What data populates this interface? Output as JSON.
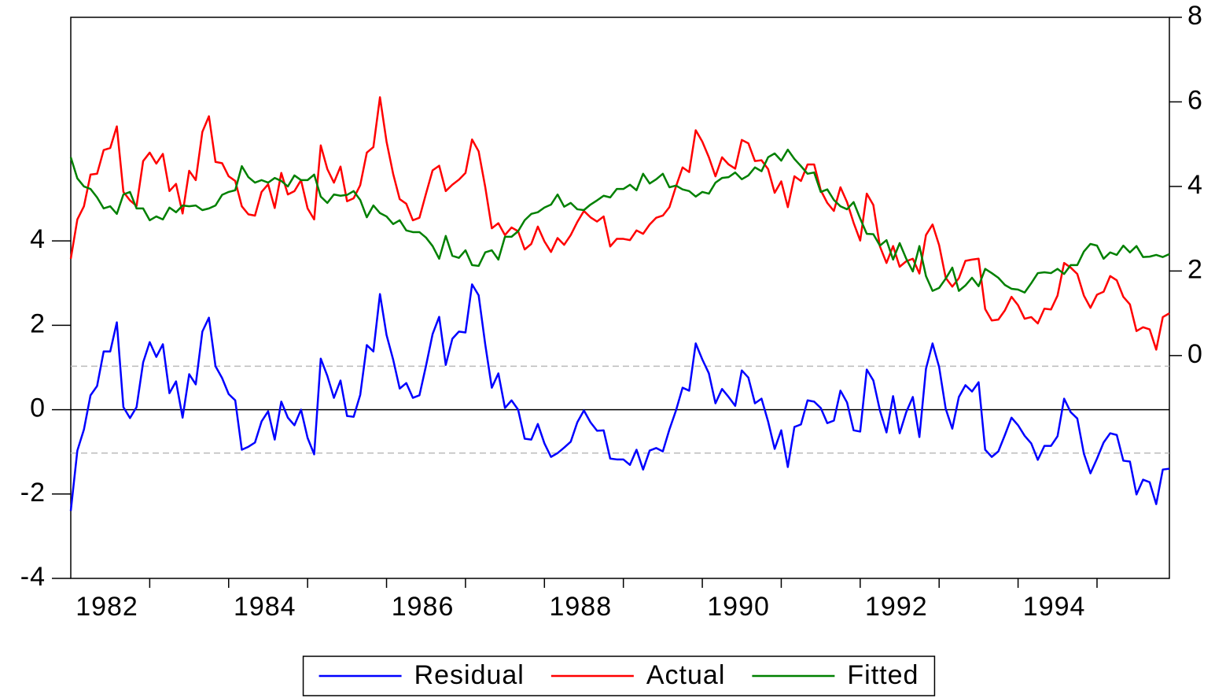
{
  "chart_data": {
    "type": "line",
    "categories": [
      null,
      null,
      null,
      null,
      null,
      null,
      "1982",
      null,
      null,
      null,
      null,
      null,
      null,
      null,
      null,
      null,
      null,
      null,
      null,
      null,
      null,
      null,
      null,
      null,
      null,
      null,
      null,
      null,
      null,
      null,
      "1984",
      null,
      null,
      null,
      null,
      null,
      null,
      null,
      null,
      null,
      null,
      null,
      null,
      null,
      null,
      null,
      null,
      null,
      null,
      null,
      null,
      null,
      null,
      null,
      "1986",
      null,
      null,
      null,
      null,
      null,
      null,
      null,
      null,
      null,
      null,
      null,
      null,
      null,
      null,
      null,
      null,
      null,
      null,
      null,
      null,
      null,
      null,
      null,
      "1988",
      null,
      null,
      null,
      null,
      null,
      null,
      null,
      null,
      null,
      null,
      null,
      null,
      null,
      null,
      null,
      null,
      null,
      null,
      null,
      null,
      null,
      null,
      null,
      "1990",
      null,
      null,
      null,
      null,
      null,
      null,
      null,
      null,
      null,
      null,
      null,
      null,
      null,
      null,
      null,
      null,
      null,
      null,
      null,
      null,
      null,
      null,
      null,
      "1992",
      null,
      null,
      null,
      null,
      null,
      null,
      null,
      null,
      null,
      null,
      null,
      null,
      null,
      null,
      null,
      null,
      null,
      null,
      null,
      null,
      null,
      null,
      null,
      "1994",
      null,
      null,
      null,
      null,
      null,
      null,
      null,
      null,
      null,
      null,
      null,
      null,
      null,
      null,
      null,
      null,
      null
    ],
    "series": [
      {
        "name": "Residual",
        "color": "#0000ff",
        "values": [
          -2.4,
          -0.97,
          -0.47,
          0.34,
          0.56,
          1.38,
          1.38,
          2.07,
          0.06,
          -0.2,
          0.06,
          1.12,
          1.6,
          1.25,
          1.55,
          0.39,
          0.67,
          -0.19,
          0.84,
          0.6,
          1.85,
          2.18,
          1.03,
          0.75,
          0.37,
          0.22,
          -0.95,
          -0.88,
          -0.78,
          -0.28,
          -0.04,
          -0.71,
          0.19,
          -0.19,
          -0.37,
          0,
          -0.67,
          -1.06,
          1.21,
          0.8,
          0.28,
          0.69,
          -0.15,
          -0.17,
          0.35,
          1.53,
          1.38,
          2.74,
          1.77,
          1.19,
          0.5,
          0.63,
          0.28,
          0.34,
          1.04,
          1.79,
          2.2,
          1.06,
          1.68,
          1.85,
          1.83,
          2.97,
          2.71,
          1.55,
          0.52,
          0.86,
          0.04,
          0.22,
          0,
          -0.69,
          -0.71,
          -0.34,
          -0.8,
          -1.12,
          -1.03,
          -0.9,
          -0.76,
          -0.3,
          -0.02,
          -0.3,
          -0.5,
          -0.49,
          -1.16,
          -1.18,
          -1.18,
          -1.31,
          -0.95,
          -1.42,
          -0.97,
          -0.91,
          -0.99,
          -0.47,
          -0.02,
          0.52,
          0.45,
          1.57,
          1.19,
          0.86,
          0.15,
          0.49,
          0.3,
          0.09,
          0.93,
          0.76,
          0.15,
          0.26,
          -0.28,
          -0.93,
          -0.49,
          -1.36,
          -0.41,
          -0.35,
          0.22,
          0.19,
          0.04,
          -0.32,
          -0.26,
          0.45,
          0.17,
          -0.49,
          -0.52,
          0.95,
          0.69,
          -0.02,
          -0.54,
          0.32,
          -0.56,
          -0.06,
          0.3,
          -0.65,
          0.97,
          1.57,
          1.01,
          0.02,
          -0.45,
          0.3,
          0.58,
          0.43,
          0.65,
          -0.95,
          -1.12,
          -0.99,
          -0.6,
          -0.19,
          -0.37,
          -0.62,
          -0.8,
          -1.19,
          -0.86,
          -0.86,
          -0.63,
          0.26,
          -0.06,
          -0.21,
          -1.04,
          -1.51,
          -1.16,
          -0.78,
          -0.56,
          -0.6,
          -1.21,
          -1.23,
          -2.01,
          -1.66,
          -1.72,
          -2.24,
          -1.42,
          -1.4
        ]
      },
      {
        "name": "Actual",
        "color": "#ff0000",
        "axis": "y2",
        "values": [
          2.29,
          3.22,
          3.53,
          4.28,
          4.3,
          4.86,
          4.91,
          5.42,
          3.87,
          3.67,
          3.54,
          4.6,
          4.8,
          4.54,
          4.77,
          3.89,
          4.06,
          3.36,
          4.37,
          4.15,
          5.29,
          5.66,
          4.58,
          4.55,
          4.24,
          4.13,
          3.53,
          3.34,
          3.31,
          3.87,
          4.05,
          3.49,
          4.32,
          3.81,
          3.89,
          4.15,
          3.48,
          3.22,
          4.97,
          4.41,
          4.09,
          4.47,
          3.65,
          3.72,
          4.03,
          4.8,
          4.93,
          6.11,
          5.06,
          4.3,
          3.7,
          3.59,
          3.2,
          3.26,
          3.83,
          4.38,
          4.49,
          3.89,
          4.04,
          4.16,
          4.32,
          5.11,
          4.83,
          3.99,
          3.01,
          3.13,
          2.85,
          3.03,
          2.94,
          2.51,
          2.64,
          3.05,
          2.7,
          2.45,
          2.78,
          2.62,
          2.85,
          3.16,
          3.42,
          3.27,
          3.17,
          3.29,
          2.58,
          2.76,
          2.76,
          2.73,
          2.96,
          2.88,
          3.1,
          3.26,
          3.31,
          3.51,
          4.0,
          4.45,
          4.34,
          5.33,
          5.06,
          4.69,
          4.24,
          4.69,
          4.52,
          4.42,
          5.1,
          5.02,
          4.6,
          4.62,
          4.41,
          3.85,
          4.12,
          3.51,
          4.24,
          4.13,
          4.52,
          4.52,
          3.91,
          3.61,
          3.42,
          3.98,
          3.63,
          3.14,
          2.72,
          3.83,
          3.56,
          2.58,
          2.19,
          2.59,
          2.1,
          2.23,
          2.29,
          1.94,
          2.85,
          3.1,
          2.61,
          1.84,
          1.63,
          1.83,
          2.24,
          2.27,
          2.29,
          1.1,
          0.83,
          0.85,
          1.07,
          1.39,
          1.19,
          0.87,
          0.91,
          0.76,
          1.11,
          1.09,
          1.42,
          2.19,
          2.08,
          1.93,
          1.42,
          1.13,
          1.44,
          1.51,
          1.88,
          1.78,
          1.39,
          1.21,
          0.58,
          0.67,
          0.62,
          0.14,
          0.91,
          1.0
        ]
      },
      {
        "name": "Fitted",
        "color": "#008000",
        "axis": "y2",
        "values": [
          4.69,
          4.19,
          4.0,
          3.94,
          3.74,
          3.48,
          3.53,
          3.35,
          3.81,
          3.87,
          3.48,
          3.48,
          3.2,
          3.29,
          3.22,
          3.5,
          3.39,
          3.55,
          3.53,
          3.55,
          3.44,
          3.48,
          3.55,
          3.8,
          3.87,
          3.91,
          4.48,
          4.22,
          4.09,
          4.15,
          4.09,
          4.2,
          4.13,
          4.0,
          4.26,
          4.15,
          4.15,
          4.28,
          3.76,
          3.61,
          3.81,
          3.78,
          3.8,
          3.89,
          3.68,
          3.27,
          3.55,
          3.37,
          3.29,
          3.11,
          3.2,
          2.96,
          2.92,
          2.92,
          2.79,
          2.59,
          2.29,
          2.83,
          2.36,
          2.31,
          2.49,
          2.14,
          2.12,
          2.44,
          2.49,
          2.27,
          2.81,
          2.81,
          2.94,
          3.2,
          3.35,
          3.39,
          3.5,
          3.57,
          3.81,
          3.52,
          3.61,
          3.46,
          3.44,
          3.57,
          3.67,
          3.78,
          3.74,
          3.94,
          3.94,
          4.04,
          3.91,
          4.3,
          4.07,
          4.17,
          4.3,
          3.98,
          4.02,
          3.93,
          3.89,
          3.76,
          3.87,
          3.83,
          4.09,
          4.2,
          4.22,
          4.33,
          4.17,
          4.26,
          4.45,
          4.36,
          4.69,
          4.78,
          4.61,
          4.87,
          4.65,
          4.48,
          4.3,
          4.33,
          3.87,
          3.93,
          3.68,
          3.53,
          3.46,
          3.63,
          3.24,
          2.88,
          2.87,
          2.6,
          2.73,
          2.27,
          2.66,
          2.29,
          1.99,
          2.59,
          1.88,
          1.53,
          1.6,
          1.82,
          2.08,
          1.53,
          1.66,
          1.84,
          1.64,
          2.05,
          1.95,
          1.84,
          1.67,
          1.58,
          1.56,
          1.49,
          1.71,
          1.95,
          1.97,
          1.95,
          2.05,
          1.93,
          2.14,
          2.14,
          2.46,
          2.64,
          2.6,
          2.29,
          2.44,
          2.38,
          2.6,
          2.44,
          2.59,
          2.33,
          2.34,
          2.38,
          2.33,
          2.4
        ]
      }
    ],
    "ylim": [
      -4,
      9.3
    ],
    "yticks": [
      -4,
      -2,
      0,
      2,
      4
    ],
    "y2lim": [
      -5.27,
      8
    ],
    "y2ticks": [
      0,
      2,
      4,
      6,
      8
    ],
    "reference_lines": [
      -1.03,
      0,
      1.03
    ],
    "legend": "bottom"
  }
}
